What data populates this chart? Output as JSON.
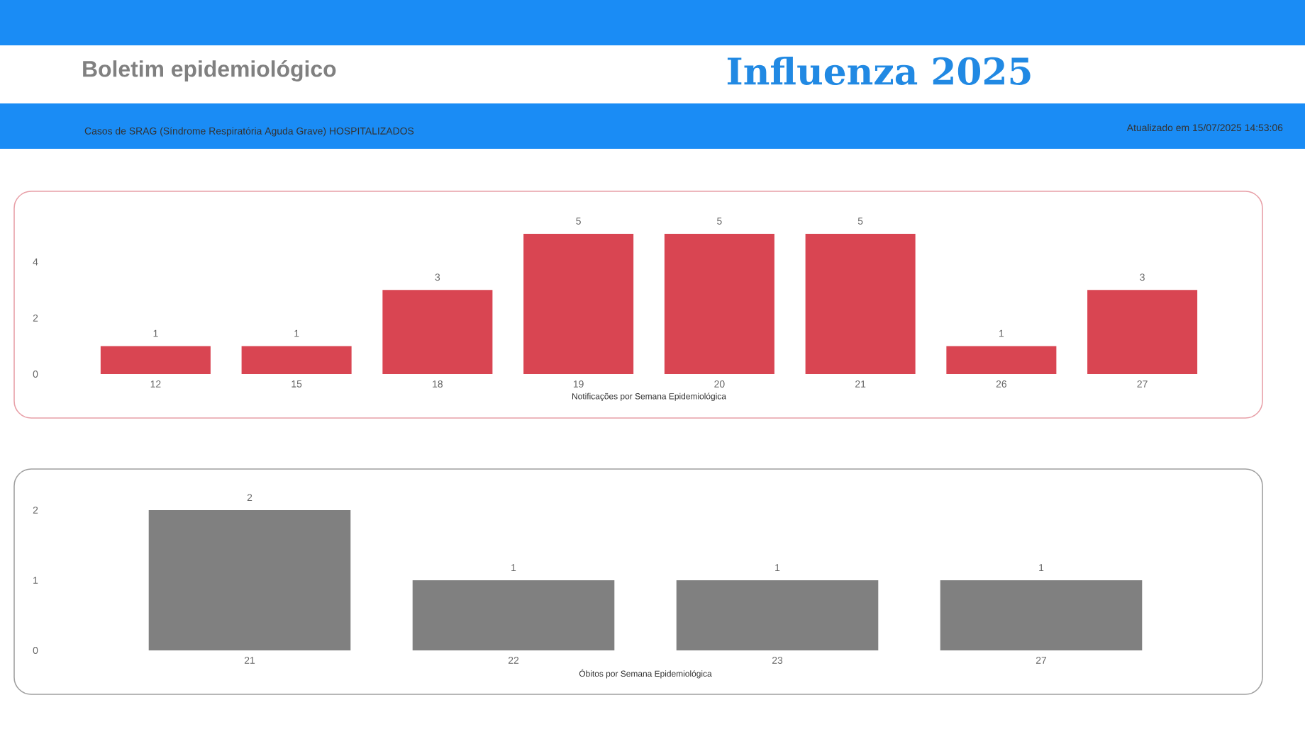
{
  "chart_data": [
    {
      "type": "bar",
      "title": "Influenza 2025",
      "subtitle": "Boletim epidemiológico",
      "annotations": [
        "Casos de SRAG (Síndrome Respiratória Aguda Grave) HOSPITALIZADOS",
        "Atualizado em 15/07/2025 14:53:06"
      ],
      "xlabel": "Notificações por Semana Epidemiológica",
      "categories": [
        "12",
        "15",
        "18",
        "19",
        "20",
        "21",
        "26",
        "27"
      ],
      "values": [
        1,
        1,
        3,
        5,
        5,
        5,
        1,
        3
      ],
      "color": "#d94552",
      "ylim": [
        0,
        5
      ],
      "yticks": [
        0,
        2,
        4
      ],
      "data_labels": true,
      "grid": false
    },
    {
      "type": "bar",
      "xlabel": "Óbitos por Semana Epidemiológica",
      "categories": [
        "21",
        "22",
        "23",
        "27"
      ],
      "values": [
        2,
        1,
        1,
        1
      ],
      "color": "#808080",
      "ylim": [
        0,
        2
      ],
      "yticks": [
        0,
        1,
        2
      ],
      "data_labels": true,
      "grid": false
    }
  ]
}
